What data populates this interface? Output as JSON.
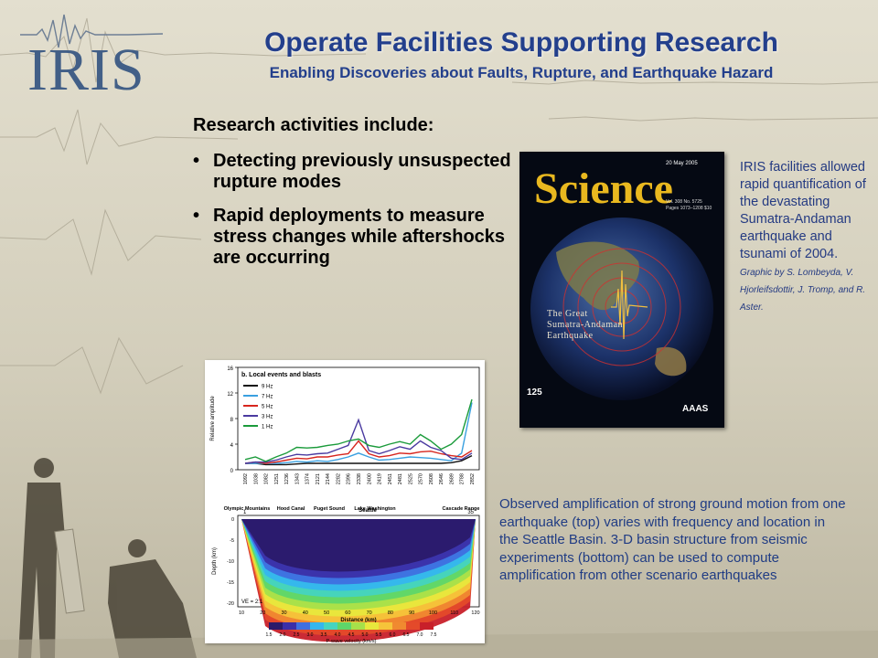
{
  "header": {
    "logo_text": "IRIS",
    "title": "Operate Facilities Supporting Research",
    "subtitle": "Enabling Discoveries about Faults, Rupture, and Earthquake Hazard"
  },
  "body": {
    "heading": "Research activities include:",
    "bullets": [
      "Detecting  previously unsuspected rupture modes",
      "Rapid deployments to measure stress changes while aftershocks are occurring"
    ],
    "bullet_symbol": "•"
  },
  "cover": {
    "masthead": "Science",
    "date": "20 May 2005",
    "vol_line1": "Vol. 308    No. 5725",
    "vol_line2": "Pages 1073–1208 $10",
    "caption_line1": "The Great",
    "caption_line2": "Sumatra-Andaman",
    "caption_line3": "Earthquake",
    "anniversary_badge": "125",
    "publisher_logo": "AAAS"
  },
  "side_caption": {
    "text": "IRIS facilities allowed rapid quantification of the devastating Sumatra-Andaman earthquake and tsunami of 2004.",
    "credit": "Graphic by S. Lombeyda, V. Hjorleifsdottir, J. Tromp, and R. Aster."
  },
  "chart_data": {
    "type": "line",
    "title": "b. Local events and blasts",
    "ylabel": "Relative amplitude",
    "ylim": [
      0,
      16
    ],
    "yticks": [
      "0",
      "4",
      "8",
      "12",
      "16"
    ],
    "x": [
      "1092",
      "1038",
      "1082",
      "1251",
      "1236",
      "1343",
      "1374",
      "2121",
      "2144",
      "2282",
      "2396",
      "2338",
      "2400",
      "2419",
      "2451",
      "2481",
      "2525",
      "2570",
      "2608",
      "2646",
      "2689",
      "2788",
      "2852"
    ],
    "series": [
      {
        "name": "9 Hz",
        "color": "#111111",
        "values": [
          1,
          1,
          0.8,
          0.8,
          0.8,
          0.9,
          1,
          1,
          1,
          1,
          1,
          1,
          1,
          1,
          1,
          1,
          1,
          1,
          1,
          1,
          1.1,
          1.4,
          2.2
        ]
      },
      {
        "name": "7 Hz",
        "color": "#3aa0e0",
        "values": [
          1,
          1,
          1,
          1,
          1.1,
          1.3,
          1.2,
          1.4,
          1.3,
          1.6,
          2,
          2.6,
          2,
          1.5,
          1.6,
          1.8,
          2,
          1.9,
          1.8,
          1.6,
          1.4,
          2.6,
          10.5
        ]
      },
      {
        "name": "5 Hz",
        "color": "#d7261e",
        "values": [
          1,
          1.2,
          1,
          1.2,
          1.5,
          1.8,
          1.7,
          2,
          2,
          2.3,
          2.5,
          4.5,
          2.5,
          2,
          2.2,
          2.6,
          2.5,
          2.8,
          2.9,
          2.5,
          2.2,
          2,
          3
        ]
      },
      {
        "name": "3 Hz",
        "color": "#4a3aa0",
        "values": [
          1,
          1.2,
          1.2,
          1.5,
          2,
          2.4,
          2.3,
          2.5,
          2.6,
          3.2,
          3.8,
          7.8,
          3,
          2.5,
          3,
          3.6,
          3.2,
          4.5,
          3.5,
          3,
          1.8,
          1.6,
          2.6
        ]
      },
      {
        "name": "1 Hz",
        "color": "#1b9b3b",
        "values": [
          1.6,
          2,
          1.3,
          2,
          2.6,
          3.5,
          3.4,
          3.5,
          3.8,
          4,
          4.5,
          4.8,
          3.8,
          3.5,
          4,
          4.4,
          4,
          5.5,
          4.5,
          3.2,
          4,
          5.5,
          11
        ]
      }
    ],
    "places": [
      "Olympic Mountains",
      "Hood Canal",
      "Puget Sound",
      "Lake Washington",
      "Cascade Range"
    ],
    "city_label": "Seattle",
    "section": {
      "ylabel": "Depth (km)",
      "xlabel": "Distance (km)",
      "yticks": [
        "0",
        "-5",
        "-10",
        "-15",
        "-20"
      ],
      "xticks": [
        "10",
        "20",
        "30",
        "40",
        "50",
        "60",
        "70",
        "80",
        "90",
        "100",
        "110",
        "120"
      ],
      "ve_label": "VE = 2:1",
      "start_marker": "1",
      "end_marker": "35",
      "colorbar_label": "P-wave velocity (km/s)",
      "colorbar_ticks": [
        "1.5",
        "2.0",
        "2.5",
        "3.0",
        "3.5",
        "4.0",
        "4.5",
        "5.0",
        "5.5",
        "6.0",
        "6.5",
        "7.0",
        "7.5"
      ],
      "colorbar_colors": [
        "#2a1a6a",
        "#3b2fa8",
        "#3f6fe0",
        "#35b6ee",
        "#45d4c0",
        "#5ed66a",
        "#a6e04a",
        "#e8e83c",
        "#f6c43a",
        "#f08a30",
        "#e44a2a",
        "#c8202a"
      ]
    }
  },
  "bottom_caption": "Observed amplification of strong ground motion from one earthquake (top) varies with frequency and location in the Seattle Basin. 3-D basin structure from seismic experiments (bottom) can be used to compute amplification from other scenario earthquakes"
}
